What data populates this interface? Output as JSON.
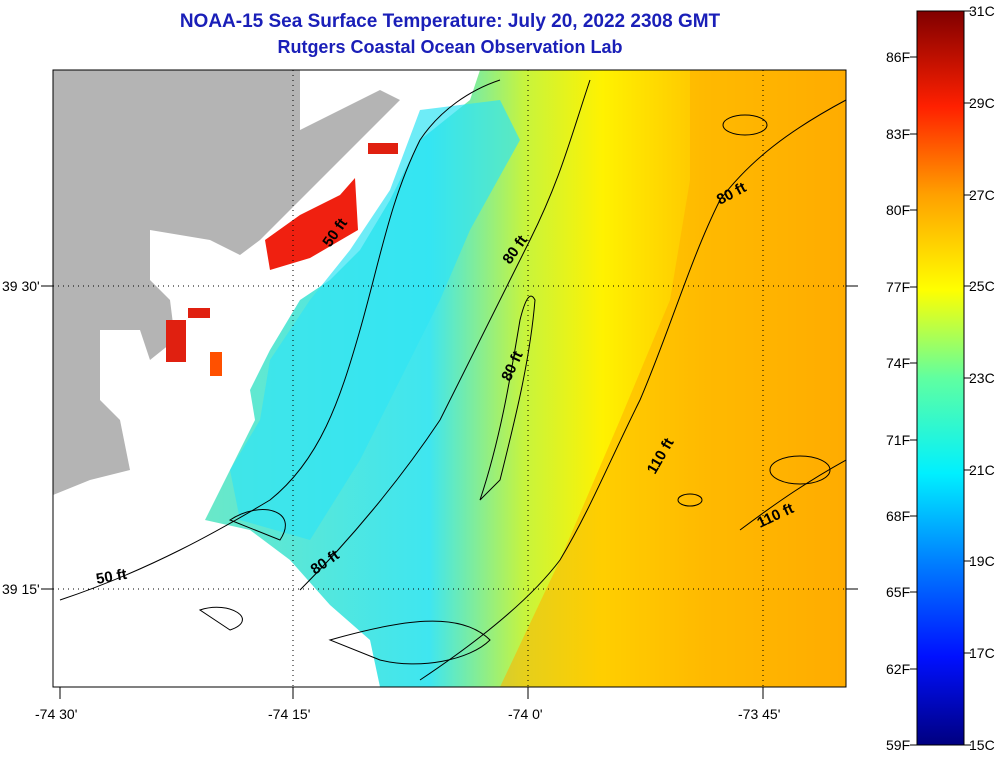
{
  "title": "NOAA-15 Sea Surface Temperature:  July 20, 2022 2308 GMT",
  "subtitle": "Rutgers Coastal Ocean Observation Lab",
  "x_axis": {
    "ticks": [
      "-74 30'",
      "-74 15'",
      "-74 0'",
      "-73 45'"
    ]
  },
  "y_axis": {
    "ticks": [
      "39 30'",
      "39 15'"
    ]
  },
  "contour_labels": [
    "50 ft",
    "80 ft",
    "80 ft",
    "110 ft",
    "110 ft",
    "80 ft",
    "80 ft",
    "50 ft"
  ],
  "colorbar": {
    "celsius": [
      "31C",
      "29C",
      "27C",
      "25C",
      "23C",
      "21C",
      "19C",
      "17C",
      "15C"
    ],
    "fahrenheit": [
      "86F",
      "83F",
      "80F",
      "77F",
      "74F",
      "71F",
      "68F",
      "65F",
      "62F",
      "59F"
    ],
    "colors": [
      "#000080",
      "#0010ff",
      "#0080ff",
      "#00f0ff",
      "#60ffa0",
      "#ffff00",
      "#ffa000",
      "#ff2000",
      "#800000"
    ]
  },
  "colors": {
    "land": "#b4b4b4",
    "no_data": "#ffffff",
    "title": "#1a1fb8"
  }
}
